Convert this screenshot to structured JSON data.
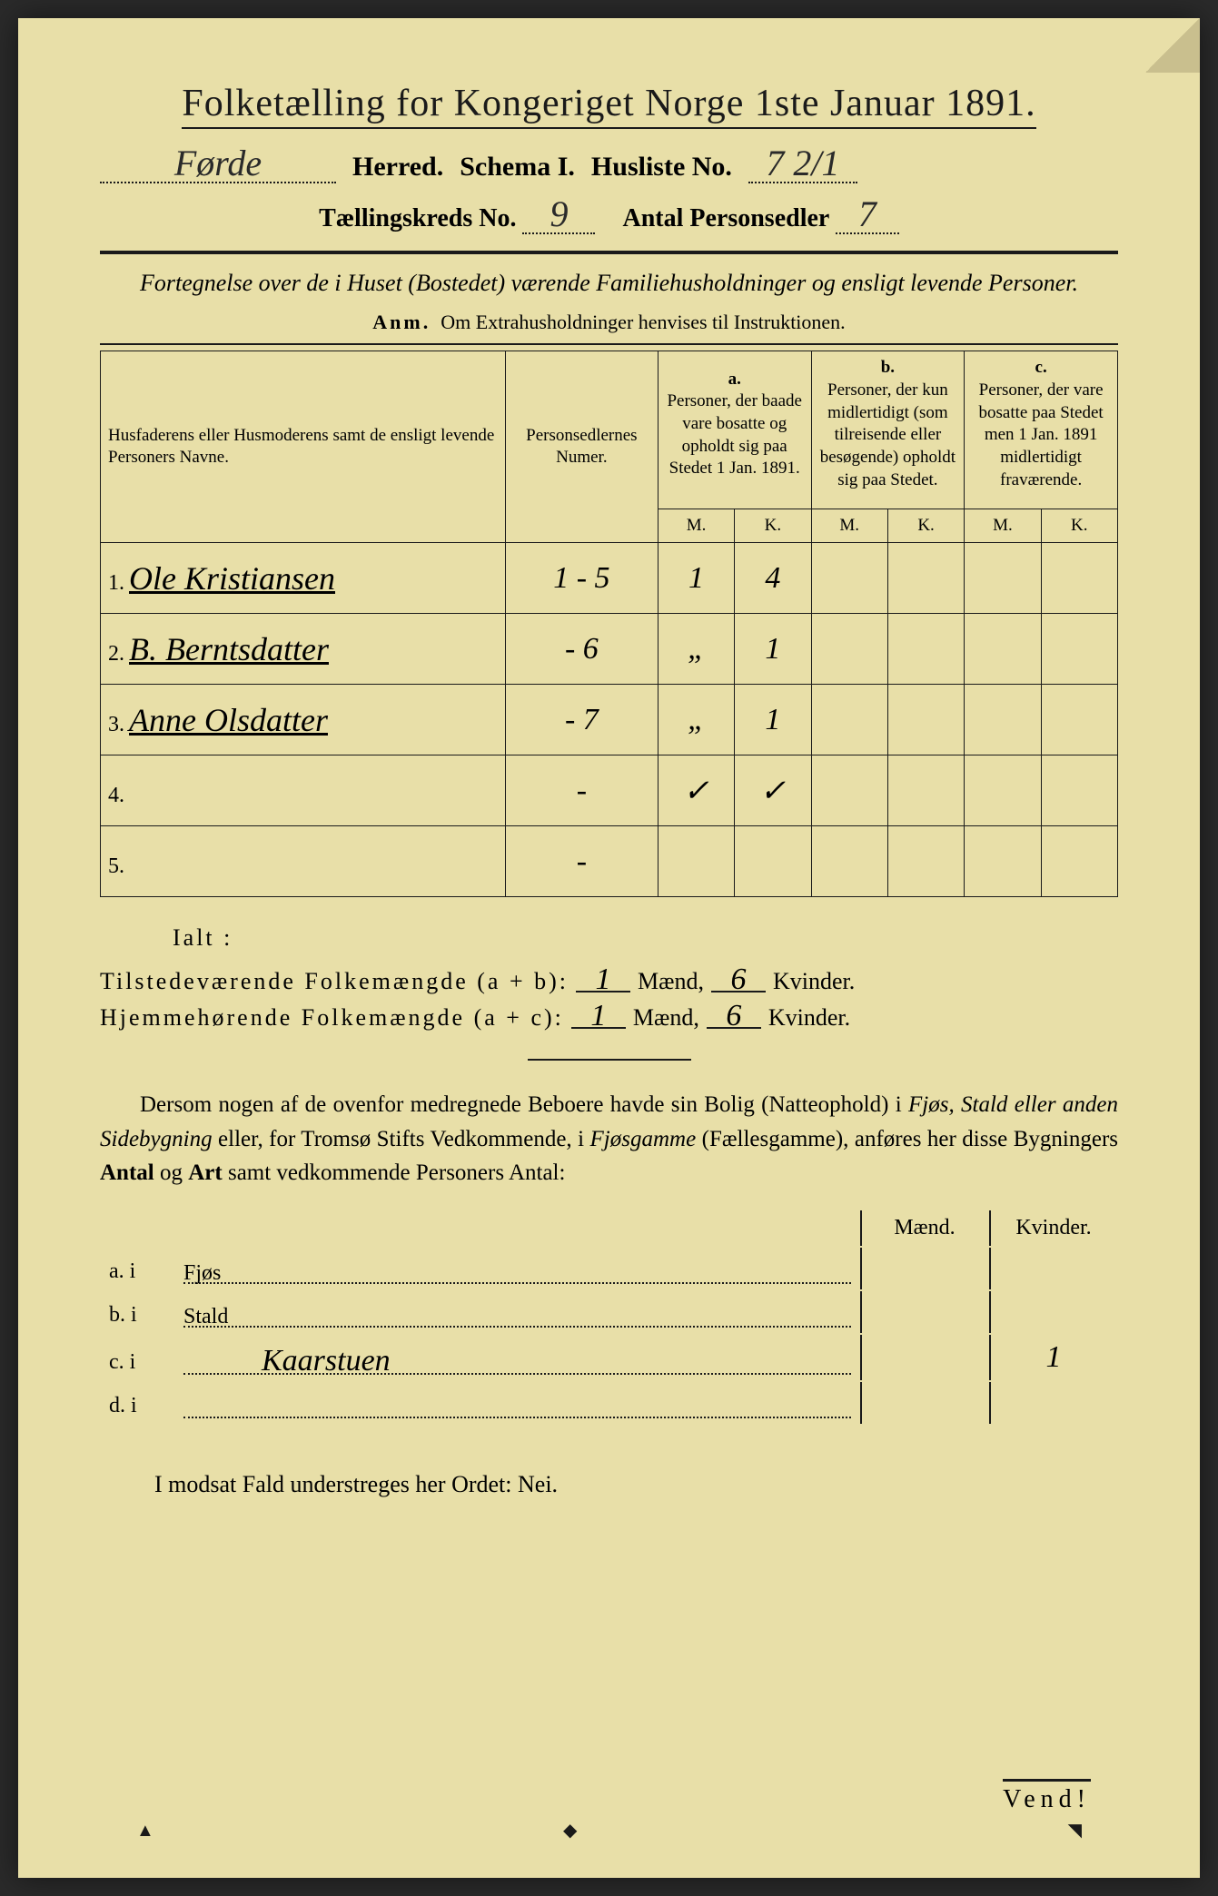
{
  "colors": {
    "paper": "#e8dfa8",
    "ink": "#1a1a1a",
    "background": "#2a2a2a"
  },
  "header": {
    "title": "Folketælling for Kongeriget Norge 1ste Januar 1891.",
    "herred_value": "Førde",
    "herred_label": "Herred.",
    "schema_label": "Schema I.",
    "husliste_label": "Husliste No.",
    "husliste_value": "7 2/1",
    "kreds_label": "Tællingskreds No.",
    "kreds_value": "9",
    "personsedler_label": "Antal Personsedler",
    "personsedler_value": "7"
  },
  "description": "Fortegnelse over de i Huset (Bostedet) værende Familiehusholdninger og ensligt levende Personer.",
  "anm_label": "Anm.",
  "anm_text": "Om Extrahusholdninger henvises til Instruktionen.",
  "table": {
    "col1_header": "Husfaderens eller Husmoderens samt de ensligt levende Personers Navne.",
    "col2_header": "Personsedlernes Numer.",
    "col_a_label": "a.",
    "col_a_text": "Personer, der baade vare bosatte og opholdt sig paa Stedet 1 Jan. 1891.",
    "col_b_label": "b.",
    "col_b_text": "Personer, der kun midlertidigt (som tilreisende eller besøgende) opholdt sig paa Stedet.",
    "col_c_label": "c.",
    "col_c_text": "Personer, der vare bosatte paa Stedet men 1 Jan. 1891 midlertidigt fraværende.",
    "m_label": "M.",
    "k_label": "K.",
    "rows": [
      {
        "n": "1.",
        "name": "Ole Kristiansen",
        "numer": "1 - 5",
        "a_m": "1",
        "a_k": "4",
        "b_m": "",
        "b_k": "",
        "c_m": "",
        "c_k": ""
      },
      {
        "n": "2.",
        "name": "B. Berntsdatter",
        "numer": "- 6",
        "a_m": "„",
        "a_k": "1",
        "b_m": "",
        "b_k": "",
        "c_m": "",
        "c_k": ""
      },
      {
        "n": "3.",
        "name": "Anne Olsdatter",
        "numer": "- 7",
        "a_m": "„",
        "a_k": "1",
        "b_m": "",
        "b_k": "",
        "c_m": "",
        "c_k": ""
      },
      {
        "n": "4.",
        "name": "",
        "numer": "-",
        "a_m": "✓",
        "a_k": "✓",
        "b_m": "",
        "b_k": "",
        "c_m": "",
        "c_k": ""
      },
      {
        "n": "5.",
        "name": "",
        "numer": "-",
        "a_m": "",
        "a_k": "",
        "b_m": "",
        "b_k": "",
        "c_m": "",
        "c_k": ""
      }
    ]
  },
  "ialt_label": "Ialt :",
  "totals": {
    "line1_label": "Tilstedeværende Folkemængde (a + b):",
    "line1_maend": "1",
    "line1_kvinder": "6",
    "line2_label": "Hjemmehørende Folkemængde (a + c):",
    "line2_maend": "1",
    "line2_kvinder": "6",
    "maend_label": "Mænd,",
    "kvinder_label": "Kvinder."
  },
  "paragraph": {
    "text1": "Dersom nogen af de ovenfor medregnede Beboere havde sin Bolig (Natteophold) i ",
    "ital1": "Fjøs, Stald eller anden Sidebygning",
    "text2": " eller, for Tromsø Stifts Vedkommende, i ",
    "ital2": "Fjøsgamme",
    "text3": " (Fællesgamme), anføres her disse Bygningers ",
    "bold1": "Antal",
    "text4": " og ",
    "bold2": "Art",
    "text5": " samt vedkommende Personers Antal:"
  },
  "bygning": {
    "maend_header": "Mænd.",
    "kvinder_header": "Kvinder.",
    "rows": [
      {
        "label": "a.  i",
        "type": "Fjøs",
        "hand": "",
        "m": "",
        "k": ""
      },
      {
        "label": "b.  i",
        "type": "Stald",
        "hand": "",
        "m": "",
        "k": ""
      },
      {
        "label": "c.  i",
        "type": "",
        "hand": "Kaarstuen",
        "m": "",
        "k": "1"
      },
      {
        "label": "d.  i",
        "type": "",
        "hand": "",
        "m": "",
        "k": ""
      }
    ]
  },
  "bottom_line": "I modsat Fald understreges her Ordet: Nei.",
  "vend": "Vend!"
}
